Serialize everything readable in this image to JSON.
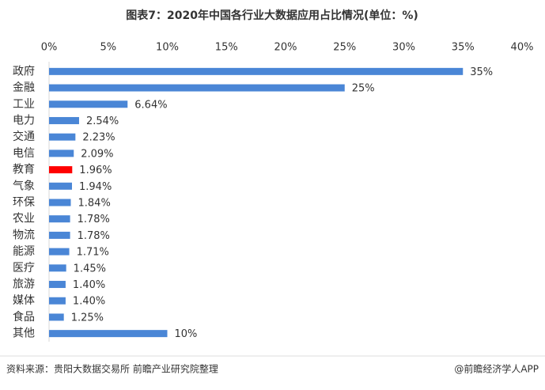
{
  "chart_data": {
    "type": "bar",
    "orientation": "horizontal",
    "title": "图表7：2020年中国各行业大数据应用占比情况(单位：%)",
    "categories": [
      "政府",
      "金融",
      "工业",
      "电力",
      "交通",
      "电信",
      "教育",
      "气象",
      "环保",
      "农业",
      "物流",
      "能源",
      "医疗",
      "旅游",
      "媒体",
      "食品",
      "其他"
    ],
    "values": [
      35,
      25,
      6.64,
      2.54,
      2.23,
      2.09,
      1.96,
      1.94,
      1.84,
      1.78,
      1.78,
      1.71,
      1.45,
      1.4,
      1.4,
      1.25,
      10
    ],
    "value_labels": [
      "35%",
      "25%",
      "6.64%",
      "2.54%",
      "2.23%",
      "2.09%",
      "1.96%",
      "1.94%",
      "1.84%",
      "1.78%",
      "1.78%",
      "1.71%",
      "1.45%",
      "1.40%",
      "1.40%",
      "1.25%",
      "10%"
    ],
    "colors": [
      "#4a86d6",
      "#4a86d6",
      "#4a86d6",
      "#4a86d6",
      "#4a86d6",
      "#4a86d6",
      "#ff0000",
      "#4a86d6",
      "#4a86d6",
      "#4a86d6",
      "#4a86d6",
      "#4a86d6",
      "#4a86d6",
      "#4a86d6",
      "#4a86d6",
      "#4a86d6",
      "#4a86d6"
    ],
    "xlim": [
      0,
      40
    ],
    "xticks": [
      {
        "value": 0,
        "label": "0%"
      },
      {
        "value": 5,
        "label": "5%"
      },
      {
        "value": 10,
        "label": "10%"
      },
      {
        "value": 15,
        "label": "15%"
      },
      {
        "value": 20,
        "label": "20%"
      },
      {
        "value": 25,
        "label": "25%"
      },
      {
        "value": 30,
        "label": "30%"
      },
      {
        "value": 35,
        "label": "35%"
      },
      {
        "value": 40,
        "label": "40%"
      }
    ],
    "source": "资料来源：贵阳大数据交易所  前瞻产业研究院整理",
    "credit": "@前瞻经济学人APP"
  }
}
